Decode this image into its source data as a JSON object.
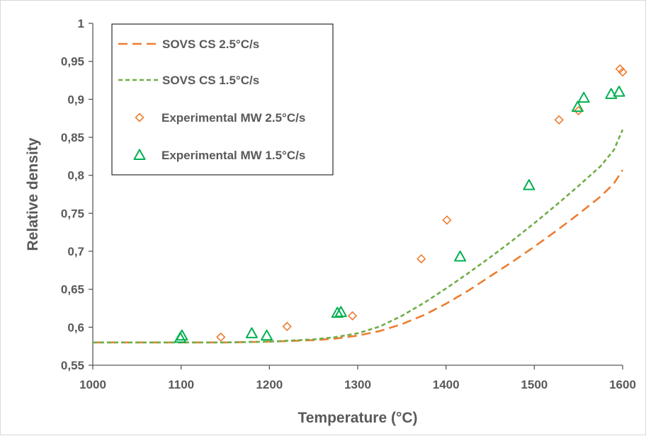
{
  "colors": {
    "orange": "#ED7D31",
    "green": "#70AD47",
    "green_marker": "#00B050",
    "axis": "#595959",
    "text": "#595959"
  },
  "chart_data": {
    "type": "scatter",
    "xlabel": "Temperature (°C)",
    "ylabel": "Relative density",
    "xlim": [
      1000,
      1600
    ],
    "ylim": [
      0.55,
      1
    ],
    "xticks": [
      1000,
      1100,
      1200,
      1300,
      1400,
      1500,
      1600
    ],
    "yticks": [
      0.55,
      0.6,
      0.65,
      0.7,
      0.75,
      0.8,
      0.85,
      0.9,
      0.95,
      1
    ],
    "xtick_labels": [
      "1000",
      "1100",
      "1200",
      "1300",
      "1400",
      "1500",
      "1600"
    ],
    "ytick_labels": [
      "0,55",
      "0,6",
      "0,65",
      "0,7",
      "0,75",
      "0,8",
      "0,85",
      "0,9",
      "0,95",
      "1"
    ],
    "grid": false,
    "legend_position": "top-left",
    "series": [
      {
        "name": "SOVS CS 2.5°C/s",
        "kind": "line",
        "dash": "long-dash",
        "color": "#ED7D31",
        "x": [
          1000,
          1100,
          1150,
          1200,
          1250,
          1275,
          1300,
          1325,
          1350,
          1375,
          1400,
          1425,
          1450,
          1475,
          1500,
          1525,
          1550,
          1575,
          1590,
          1600
        ],
        "y": [
          0.58,
          0.58,
          0.58,
          0.581,
          0.583,
          0.585,
          0.589,
          0.595,
          0.604,
          0.616,
          0.631,
          0.648,
          0.667,
          0.686,
          0.706,
          0.727,
          0.749,
          0.772,
          0.789,
          0.807
        ]
      },
      {
        "name": "SOVS CS 1.5°C/s",
        "kind": "line",
        "dash": "short-dash",
        "color": "#70AD47",
        "x": [
          1000,
          1100,
          1150,
          1200,
          1250,
          1275,
          1300,
          1325,
          1350,
          1375,
          1400,
          1425,
          1450,
          1475,
          1500,
          1525,
          1550,
          1575,
          1590,
          1600
        ],
        "y": [
          0.58,
          0.58,
          0.58,
          0.581,
          0.584,
          0.587,
          0.592,
          0.601,
          0.615,
          0.632,
          0.651,
          0.671,
          0.692,
          0.714,
          0.737,
          0.761,
          0.786,
          0.812,
          0.833,
          0.86
        ]
      },
      {
        "name": "Experimental MW 2.5°C/s",
        "kind": "marker",
        "marker": "diamond",
        "color": "#ED7D31",
        "x": [
          1145,
          1220,
          1294,
          1372,
          1401,
          1528,
          1550,
          1597,
          1600
        ],
        "y": [
          0.587,
          0.601,
          0.615,
          0.69,
          0.741,
          0.873,
          0.885,
          0.94,
          0.936
        ]
      },
      {
        "name": "Experimental MW 1.5°C/s",
        "kind": "marker",
        "marker": "triangle",
        "color": "#00B050",
        "x": [
          1099,
          1101,
          1180,
          1197,
          1277,
          1281,
          1416,
          1494,
          1549,
          1556,
          1587,
          1596
        ],
        "y": [
          0.586,
          0.589,
          0.592,
          0.589,
          0.619,
          0.62,
          0.693,
          0.787,
          0.89,
          0.902,
          0.907,
          0.91
        ]
      }
    ]
  }
}
